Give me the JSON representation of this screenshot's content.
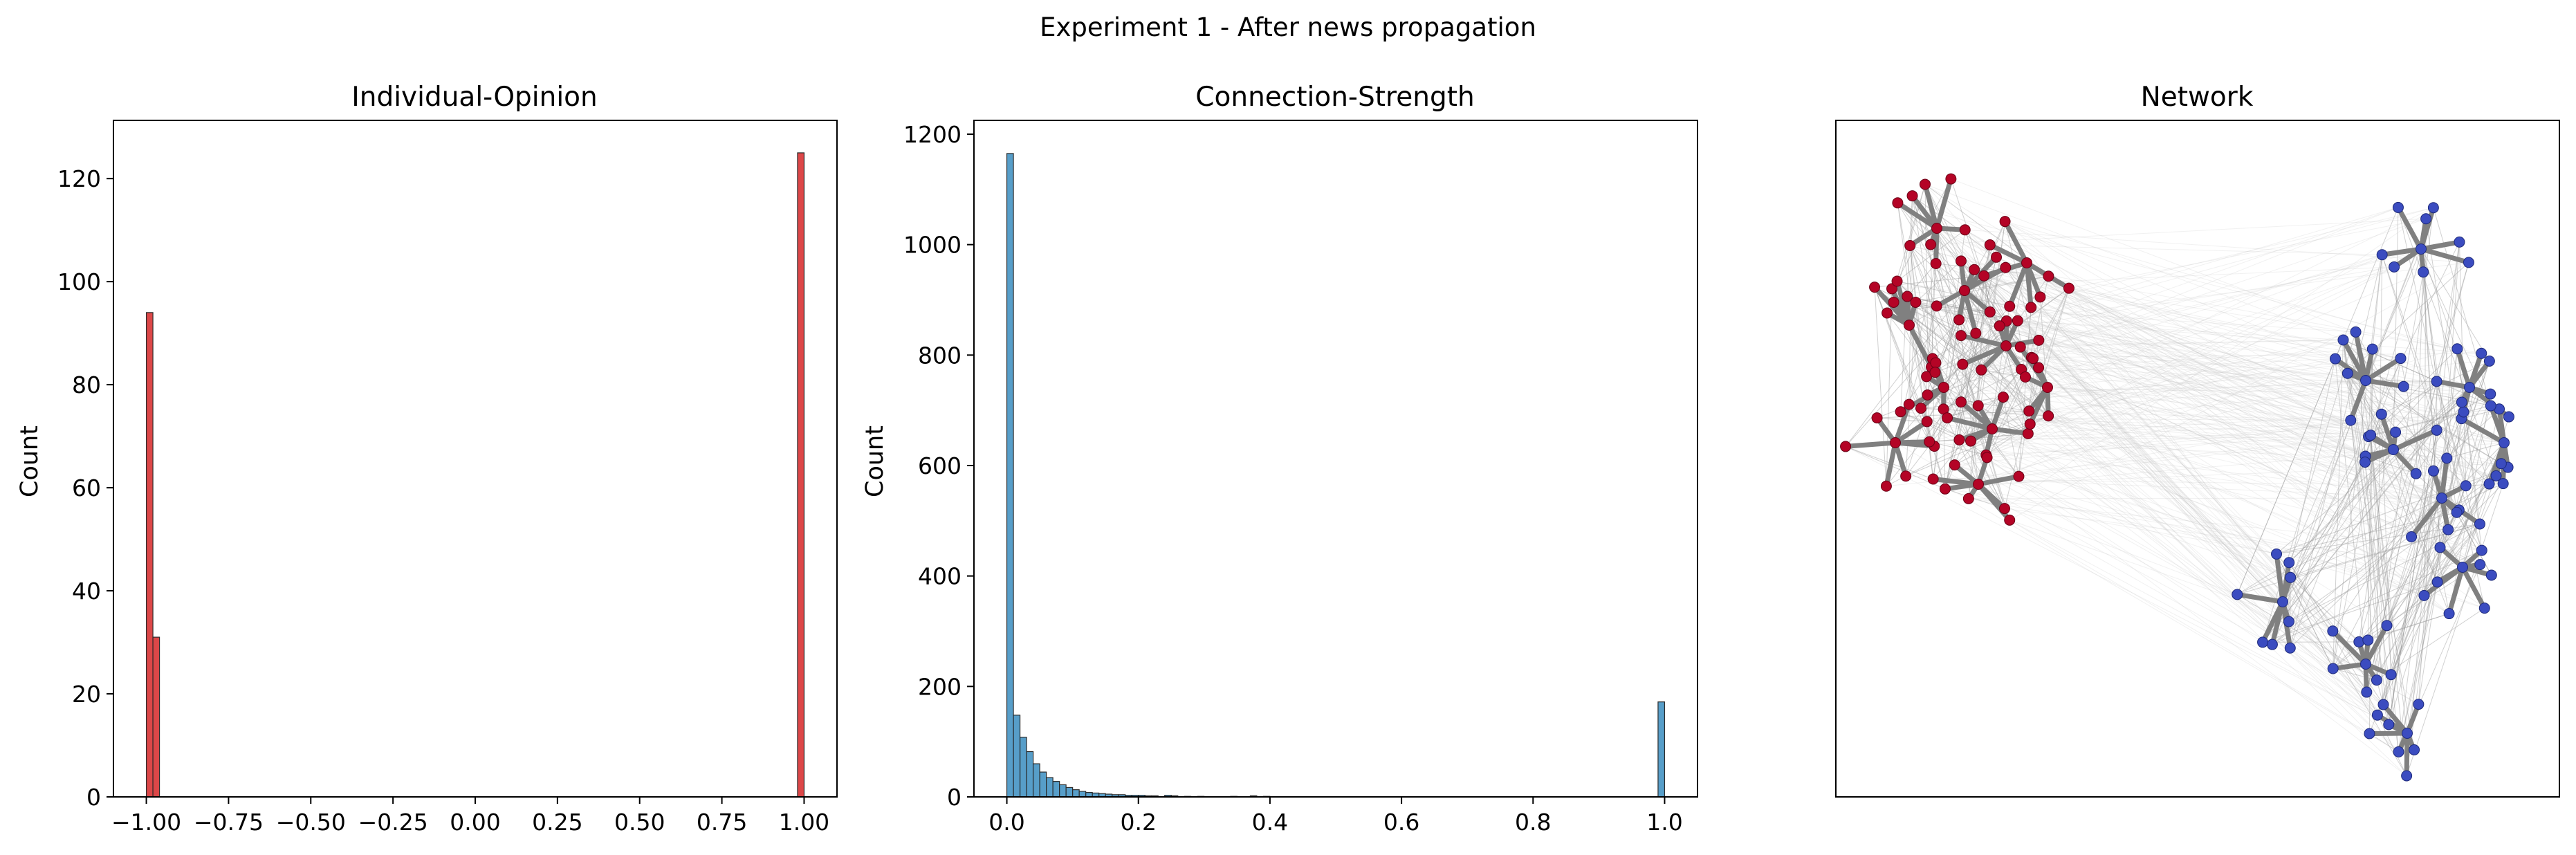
{
  "suptitle": "Experiment 1 - After news propagation",
  "chart_data": [
    {
      "type": "bar",
      "title": "Individual-Opinion",
      "xlabel": "",
      "ylabel": "Count",
      "xlim": [
        -1.1,
        1.1
      ],
      "ylim": [
        0,
        131.3
      ],
      "xticks": [
        -1.0,
        -0.75,
        -0.5,
        -0.25,
        0.0,
        0.25,
        0.5,
        0.75,
        1.0
      ],
      "xtick_labels": [
        "−1.00",
        "−0.75",
        "−0.50",
        "−0.25",
        "0.00",
        "0.25",
        "0.50",
        "0.75",
        "1.00"
      ],
      "yticks": [
        0,
        20,
        40,
        60,
        80,
        100,
        120
      ],
      "ytick_labels": [
        "0",
        "20",
        "40",
        "60",
        "80",
        "100",
        "120"
      ],
      "color": "#d62728",
      "bin_width": 0.02,
      "bins": [
        {
          "x": -1.0,
          "count": 94
        },
        {
          "x": -0.98,
          "count": 31
        },
        {
          "x": 0.98,
          "count": 125
        }
      ]
    },
    {
      "type": "bar",
      "title": "Connection-Strength",
      "xlabel": "",
      "ylabel": "Count",
      "xlim": [
        -0.05,
        1.05
      ],
      "ylim": [
        0,
        1225
      ],
      "xticks": [
        0.0,
        0.2,
        0.4,
        0.6,
        0.8,
        1.0
      ],
      "xtick_labels": [
        "0.0",
        "0.2",
        "0.4",
        "0.6",
        "0.8",
        "1.0"
      ],
      "yticks": [
        0,
        200,
        400,
        600,
        800,
        1000,
        1200
      ],
      "ytick_labels": [
        "0",
        "200",
        "400",
        "600",
        "800",
        "1000",
        "1200"
      ],
      "color": "#3a8dc0",
      "bin_width": 0.01,
      "bins": [
        {
          "x": 0.0,
          "count": 1165
        },
        {
          "x": 0.01,
          "count": 148
        },
        {
          "x": 0.02,
          "count": 108
        },
        {
          "x": 0.03,
          "count": 82
        },
        {
          "x": 0.04,
          "count": 60
        },
        {
          "x": 0.05,
          "count": 45
        },
        {
          "x": 0.06,
          "count": 35
        },
        {
          "x": 0.07,
          "count": 28
        },
        {
          "x": 0.08,
          "count": 22
        },
        {
          "x": 0.09,
          "count": 17
        },
        {
          "x": 0.1,
          "count": 13
        },
        {
          "x": 0.11,
          "count": 10
        },
        {
          "x": 0.12,
          "count": 8
        },
        {
          "x": 0.13,
          "count": 7
        },
        {
          "x": 0.14,
          "count": 6
        },
        {
          "x": 0.15,
          "count": 5
        },
        {
          "x": 0.16,
          "count": 4
        },
        {
          "x": 0.17,
          "count": 4
        },
        {
          "x": 0.18,
          "count": 3
        },
        {
          "x": 0.19,
          "count": 3
        },
        {
          "x": 0.2,
          "count": 3
        },
        {
          "x": 0.21,
          "count": 2
        },
        {
          "x": 0.22,
          "count": 2
        },
        {
          "x": 0.24,
          "count": 3
        },
        {
          "x": 0.25,
          "count": 2
        },
        {
          "x": 0.27,
          "count": 1
        },
        {
          "x": 0.29,
          "count": 1
        },
        {
          "x": 0.34,
          "count": 1
        },
        {
          "x": 0.37,
          "count": 2
        },
        {
          "x": 0.39,
          "count": 1
        },
        {
          "x": 0.99,
          "count": 172
        }
      ]
    },
    {
      "type": "network",
      "title": "Network",
      "node_colors": {
        "cluster_a": "#b40426",
        "cluster_b": "#3b4cc0"
      },
      "edge_color": "#808080"
    }
  ]
}
